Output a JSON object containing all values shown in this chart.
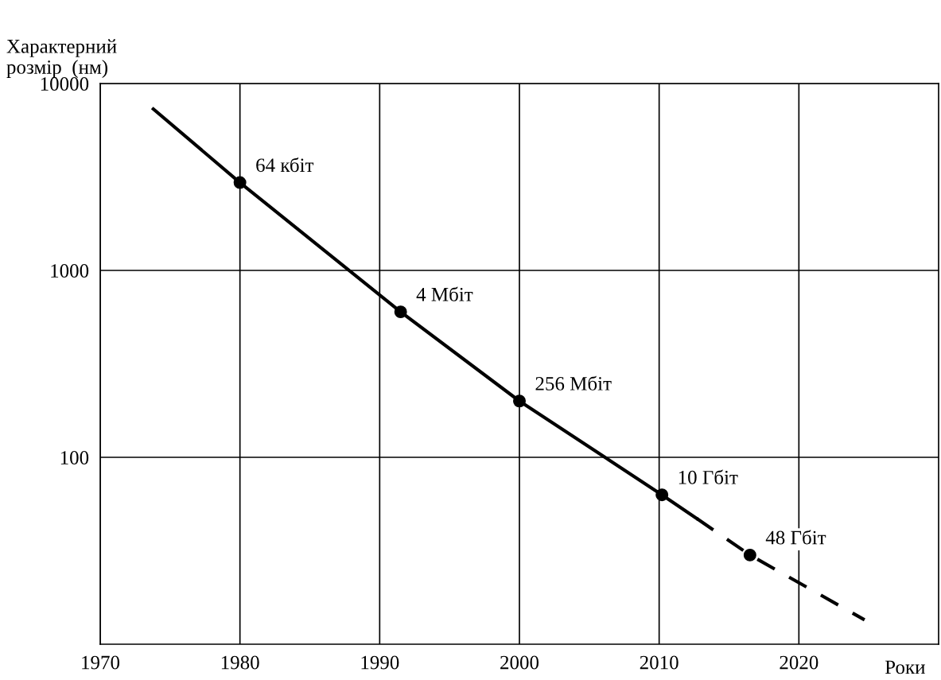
{
  "chart_data": {
    "type": "line",
    "ylabel": "Характерний\nрозмір  (нм)",
    "xlabel": "Роки",
    "series": [
      {
        "color": "#000000",
        "line_style": "solid",
        "marker": "none",
        "x": [
          1973.8,
          1980,
          1991.5,
          2000,
          2010.2,
          2012.7
        ],
        "values": [
          7300,
          2950,
          600,
          200,
          63,
          47
        ]
      },
      {
        "type": "line",
        "color": "#000000",
        "line_style": "dashed",
        "marker": "none",
        "x": [
          2012.7,
          2016.5,
          2024.7
        ],
        "values": [
          47,
          30,
          13.5
        ]
      },
      {
        "type": "scatter",
        "color": "#000000",
        "marker": "circle",
        "x": [
          1980,
          1991.5,
          2000,
          2010.2,
          2016.5
        ],
        "values": [
          2950,
          600,
          200,
          63,
          30
        ]
      }
    ],
    "annotations": [
      {
        "text": "64 кбіт",
        "x": 1980,
        "y": 2950
      },
      {
        "text": "4 Мбіт",
        "x": 1991.5,
        "y": 600
      },
      {
        "text": "256 Мбіт",
        "x": 2000,
        "y": 200
      },
      {
        "text": "10 Гбіт",
        "x": 2010.2,
        "y": 63
      },
      {
        "text": "48 Гбіт",
        "x": 2016.5,
        "y": 30
      }
    ],
    "log": "y",
    "xlim": [
      1970,
      2030
    ],
    "xticks": [
      1970,
      1980,
      1990,
      2000,
      2010,
      2020
    ],
    "ylim": [
      10,
      10000
    ],
    "yticks": [
      100,
      1000,
      10000
    ],
    "grid": true
  }
}
